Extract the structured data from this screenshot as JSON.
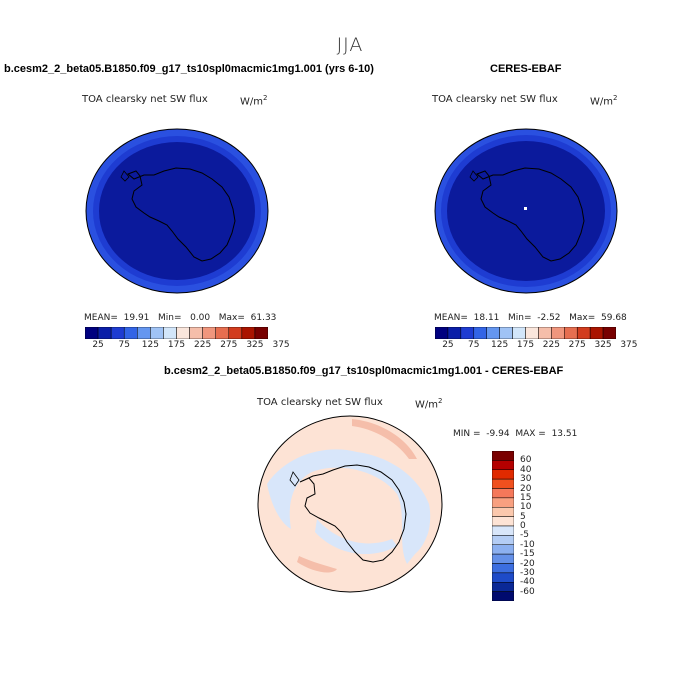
{
  "season_title": "JJA",
  "panels": {
    "model": {
      "case_title": "b.cesm2_2_beta05.B1850.f09_g17_ts10spl0macmic1mg1.001 (yrs 6-10)",
      "variable_title": "TOA clearsky net SW flux",
      "units_base": "W/m",
      "units_exp": "2",
      "stats": {
        "mean_label": "MEAN=",
        "mean": "19.91",
        "min_label": "Min=",
        "min": "0.00",
        "max_label": "Max=",
        "max": "61.33"
      }
    },
    "obs": {
      "case_title": "CERES-EBAF",
      "variable_title": "TOA clearsky net SW flux",
      "units_base": "W/m",
      "units_exp": "2",
      "stats": {
        "mean_label": "MEAN=",
        "mean": "18.11",
        "min_label": "Min=",
        "min": "-2.52",
        "max_label": "Max=",
        "max": "59.68"
      }
    },
    "diff": {
      "case_title": "b.cesm2_2_beta05.B1850.f09_g17_ts10spl0macmic1mg1.001 - CERES-EBAF",
      "variable_title": "TOA clearsky net SW flux",
      "units_base": "W/m",
      "units_exp": "2",
      "minmax": {
        "min_label": "MIN =",
        "min": "-9.94",
        "max_label": "MAX =",
        "max": "13.51"
      }
    }
  },
  "colorbar_abs": {
    "colors": [
      "#00007f",
      "#0a1ea8",
      "#1e3cd2",
      "#3264e6",
      "#6496f0",
      "#a0c3f5",
      "#d2e6fa",
      "#fae6dc",
      "#f5beaa",
      "#f0967d",
      "#e66e50",
      "#d23c1e",
      "#aa1400",
      "#780000"
    ],
    "labels": [
      "25",
      "75",
      "125",
      "175",
      "225",
      "275",
      "325",
      "375"
    ]
  },
  "colorbar_diff": {
    "colors": [
      "#7a0000",
      "#b40000",
      "#e02a00",
      "#f0501e",
      "#f5785a",
      "#f8a080",
      "#fbc8ad",
      "#fde3d5",
      "#d8e6fa",
      "#b4cdf5",
      "#8cb0f0",
      "#6490e8",
      "#3c6ee0",
      "#1e4bc8",
      "#0a2896",
      "#000a6e"
    ],
    "labels": [
      "60",
      "40",
      "30",
      "20",
      "15",
      "10",
      "5",
      "0",
      "-5",
      "-10",
      "-15",
      "-20",
      "-30",
      "-40",
      "-60"
    ]
  },
  "map_colors": {
    "ocean_deep": "#0b1a9c",
    "ring_mid": "#1e3cd2",
    "ring_outer": "#2a50e0",
    "diff_bg": "#fde3d5",
    "diff_neg": "#d8e6fa",
    "diff_pos": "#f5beaa"
  }
}
